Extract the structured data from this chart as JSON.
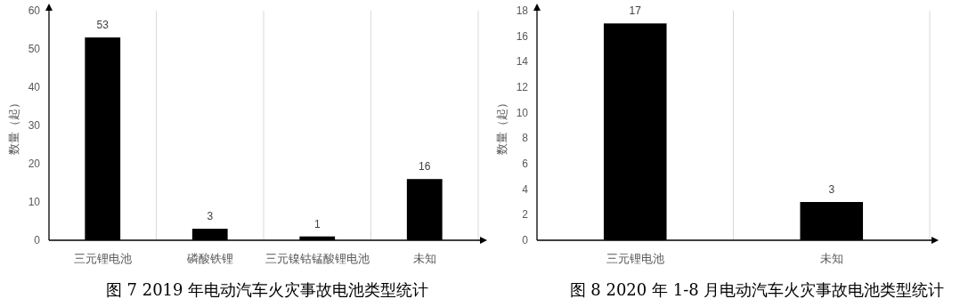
{
  "chart_data": [
    {
      "type": "bar",
      "title": "图 7 2019 年电动汽车火灾事故电池类型统计",
      "ylabel": "数量（起）",
      "categories": [
        "三元锂电池",
        "磷酸铁锂",
        "三元镍钴锰酸锂电池",
        "未知"
      ],
      "values": [
        53,
        3,
        1,
        16
      ],
      "color": "#000000",
      "ylim": [
        0,
        60
      ],
      "yticks": [
        0,
        10,
        20,
        30,
        40,
        50,
        60
      ],
      "grid": "x",
      "data_labels": true
    },
    {
      "type": "bar",
      "title": "图 8 2020 年 1-8 月电动汽车火灾事故电池类型统计",
      "ylabel": "数量（起）",
      "categories": [
        "三元锂电池",
        "未知"
      ],
      "values": [
        17,
        3
      ],
      "color": "#000000",
      "ylim": [
        0,
        18
      ],
      "yticks": [
        0,
        2,
        4,
        6,
        8,
        10,
        12,
        14,
        16,
        18
      ],
      "grid": "x",
      "data_labels": true
    }
  ]
}
